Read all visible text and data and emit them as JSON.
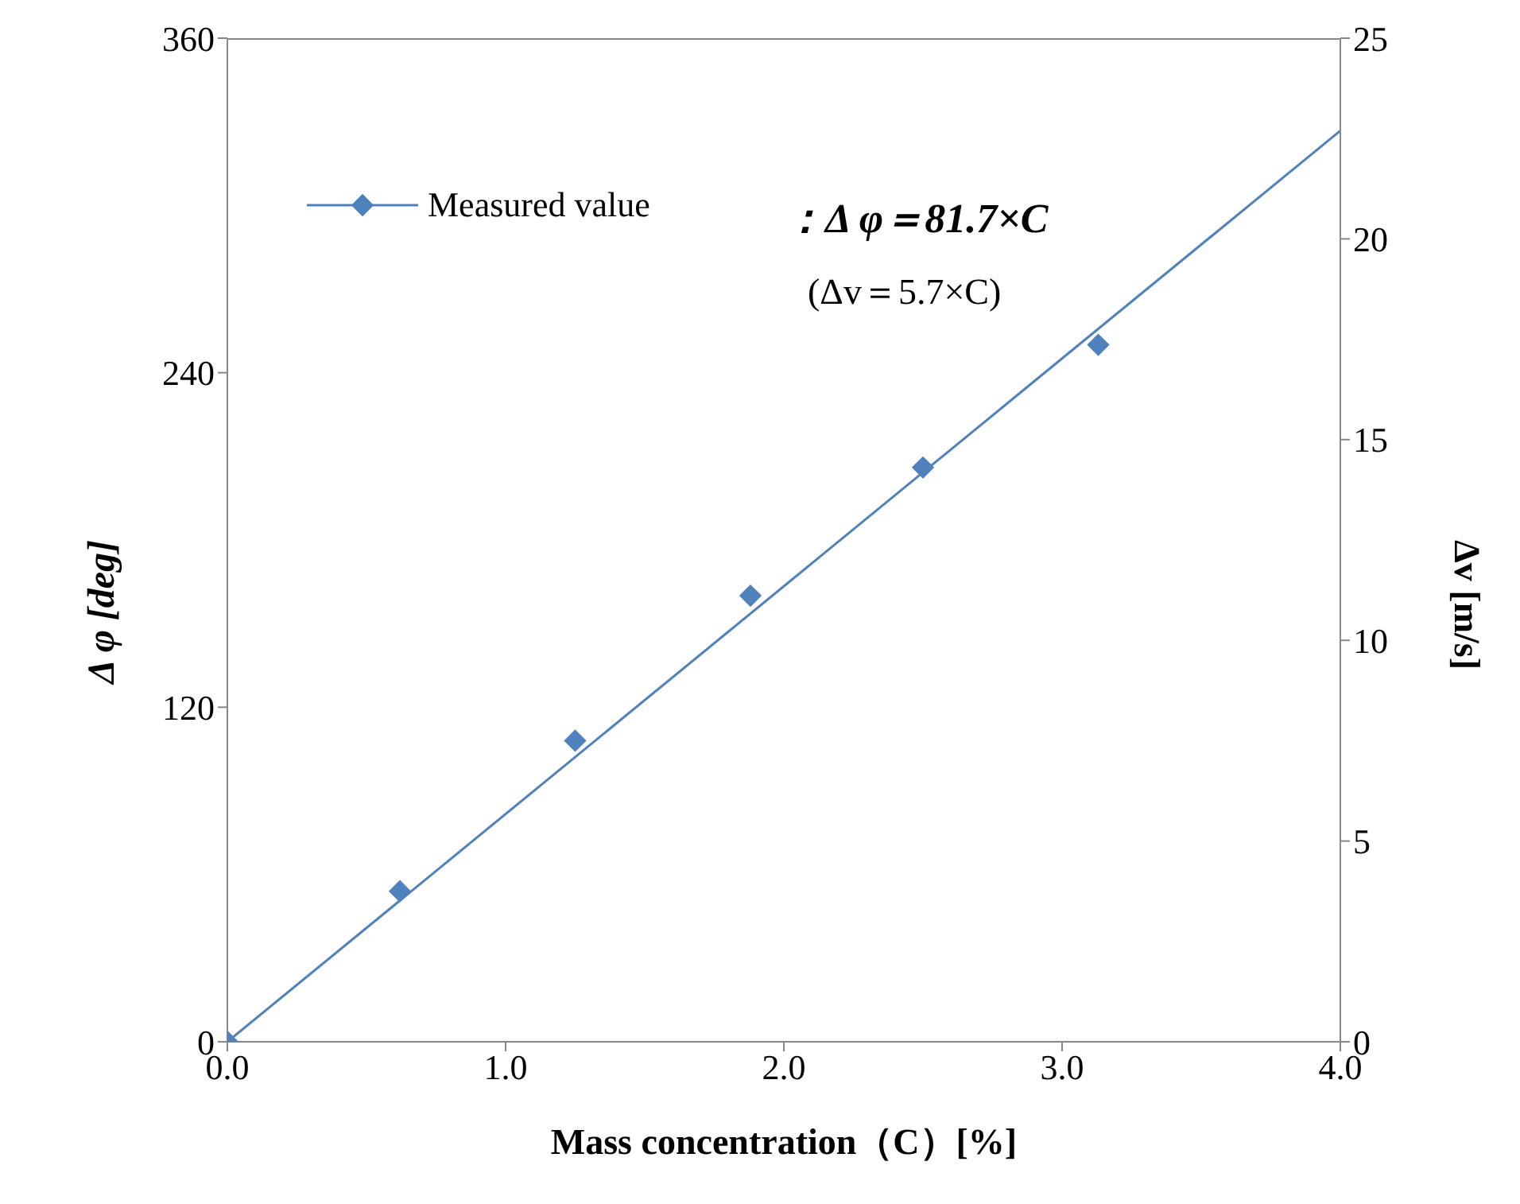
{
  "chart_data": {
    "type": "scatter",
    "xlabel": "Mass concentration（C）[%]",
    "ylabel": "Δ φ [deg]",
    "y2label": "Δv [m/s]",
    "series": [
      {
        "name": "Measured value",
        "marker": "diamond",
        "color": "#4f81bd",
        "x": [
          0,
          0.62,
          1.25,
          1.88,
          2.5,
          3.13
        ],
        "values": [
          0,
          54,
          108,
          160,
          206,
          250
        ]
      },
      {
        "type": "line",
        "marker": "none",
        "color": "#4f81bd",
        "x": [
          0,
          4
        ],
        "values": [
          0,
          326.8
        ]
      }
    ],
    "xlim": [
      0,
      4
    ],
    "xticks": [
      {
        "value": 0,
        "label": "0.0"
      },
      {
        "value": 1,
        "label": "1.0"
      },
      {
        "value": 2,
        "label": "2.0"
      },
      {
        "value": 3,
        "label": "3.0"
      },
      {
        "value": 4,
        "label": "4.0"
      }
    ],
    "ylim": [
      0,
      360
    ],
    "yticks": [
      0,
      120,
      240,
      360
    ],
    "y2lim": [
      0,
      25
    ],
    "y2ticks": [
      0,
      5,
      10,
      15,
      20,
      25
    ],
    "annotations": [
      "：Δ φ＝81.7×C",
      "(Δv＝5.7×C)"
    ],
    "legend": "top left",
    "grid": false
  }
}
